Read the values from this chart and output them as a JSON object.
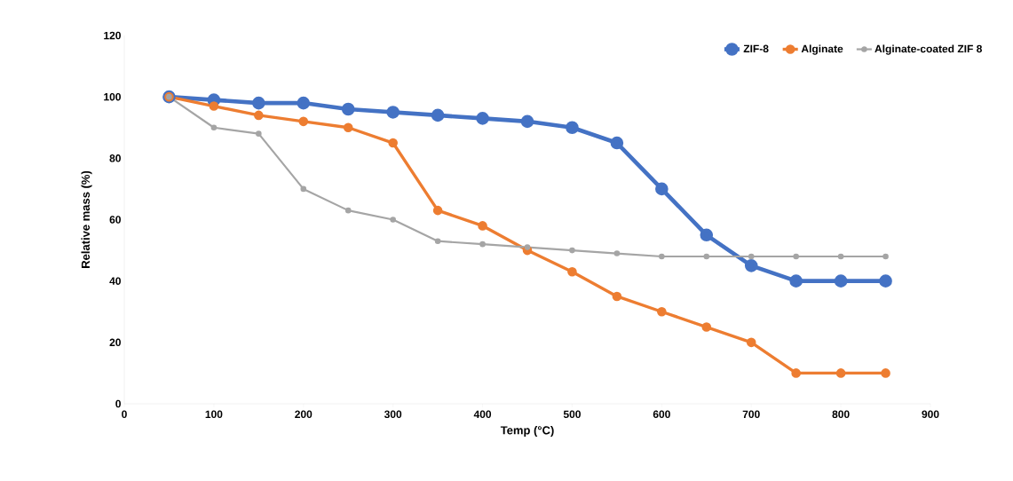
{
  "chart_data": {
    "type": "line",
    "xlabel": "Temp (°C)",
    "ylabel": "Relative mass (%)",
    "x": [
      50,
      100,
      150,
      200,
      250,
      300,
      350,
      400,
      450,
      500,
      550,
      600,
      650,
      700,
      750,
      800,
      850
    ],
    "series": [
      {
        "name": "ZIF-8",
        "color": "#4472c4",
        "values": [
          100,
          99,
          98,
          98,
          96,
          95,
          94,
          93,
          92,
          90,
          85,
          70,
          55,
          45,
          40,
          40,
          40
        ]
      },
      {
        "name": "Alginate",
        "color": "#ed7d31",
        "values": [
          100,
          97,
          94,
          92,
          90,
          85,
          63,
          58,
          50,
          43,
          35,
          30,
          25,
          20,
          10,
          10,
          10
        ]
      },
      {
        "name": "Alginate-coated ZIF 8",
        "color": "#a5a5a5",
        "values": [
          100,
          90,
          88,
          70,
          63,
          60,
          53,
          52,
          51,
          50,
          49,
          48,
          48,
          48,
          48,
          48,
          48
        ]
      }
    ],
    "xlim": [
      0,
      900
    ],
    "ylim": [
      0,
      120
    ],
    "xticks": [
      0,
      100,
      200,
      300,
      400,
      500,
      600,
      700,
      800,
      900
    ],
    "yticks": [
      0,
      20,
      40,
      60,
      80,
      100,
      120
    ],
    "grid": false,
    "legend": "top right",
    "marker": "circle",
    "line_style": "solid"
  }
}
